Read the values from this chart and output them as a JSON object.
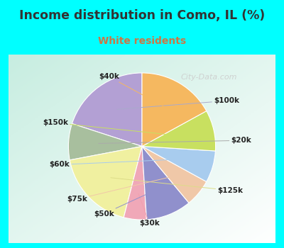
{
  "title": "Income distribution in Como, IL (%)",
  "subtitle": "White residents",
  "title_color": "#333333",
  "subtitle_color": "#cc7744",
  "bg_cyan": "#00ffff",
  "labels": [
    "$100k",
    "$20k",
    "$125k",
    "$30k",
    "$50k",
    "$75k",
    "$60k",
    "$150k",
    "$40k"
  ],
  "sizes": [
    20,
    8,
    18,
    5,
    10,
    6,
    7,
    9,
    17
  ],
  "colors": [
    "#b3a0d4",
    "#a8bf9e",
    "#f0f0a0",
    "#f0a8b8",
    "#9090cc",
    "#f0c8a8",
    "#a8ccee",
    "#c8e060",
    "#f5b860"
  ],
  "startangle": 90,
  "watermark": "City-Data.com"
}
